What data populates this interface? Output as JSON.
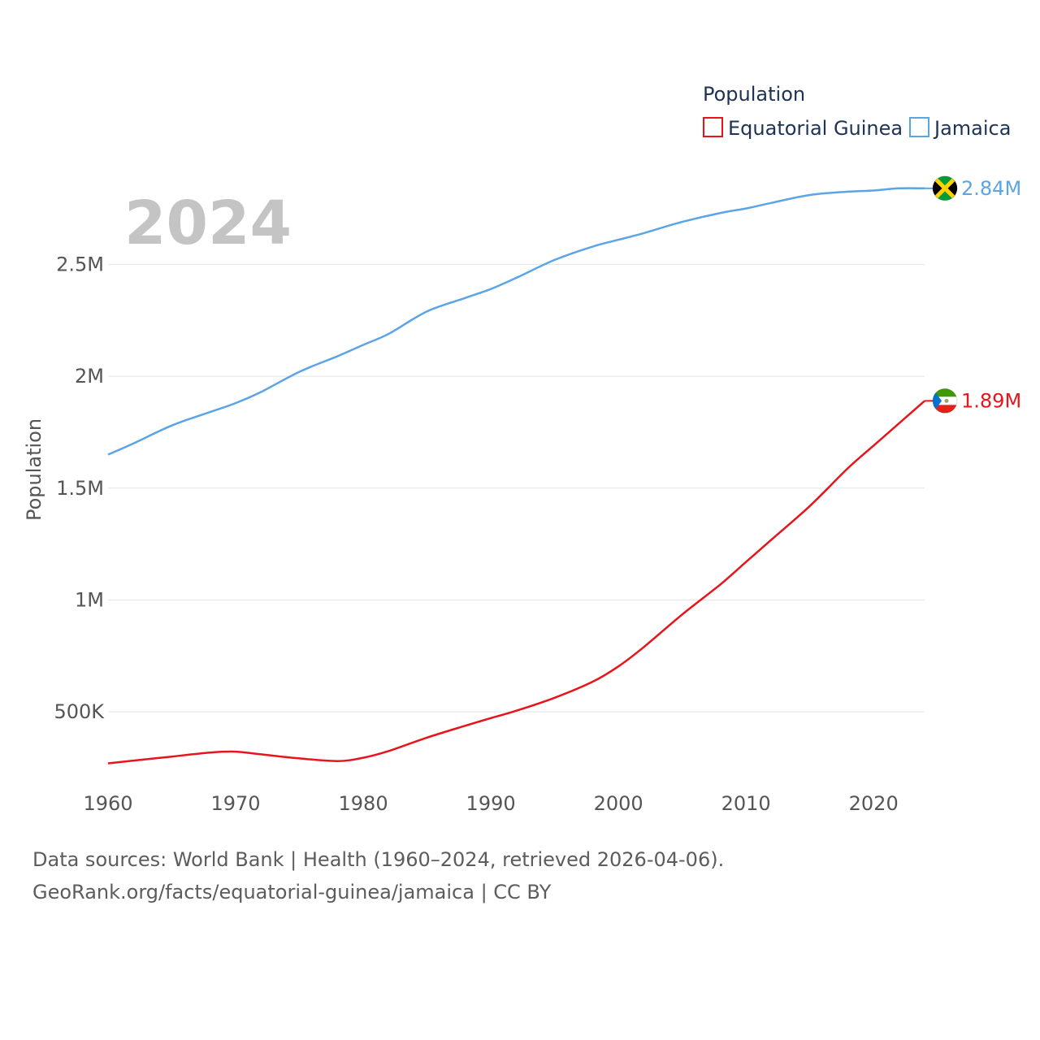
{
  "chart_data": {
    "type": "line",
    "title": "",
    "year_label": "2024",
    "xlabel": "",
    "ylabel": "Population",
    "xlim": [
      1960,
      2024
    ],
    "ylim": [
      130000,
      2930000
    ],
    "x_ticks": [
      1960,
      1970,
      1980,
      1990,
      2000,
      2010,
      2020
    ],
    "y_ticks": [
      {
        "value": 500000,
        "label": "500K"
      },
      {
        "value": 1000000,
        "label": "1M"
      },
      {
        "value": 1500000,
        "label": "1.5M"
      },
      {
        "value": 2000000,
        "label": "2M"
      },
      {
        "value": 2500000,
        "label": "2.5M"
      }
    ],
    "legend": {
      "title": "Population",
      "position": "top-right"
    },
    "x": [
      1960,
      1962,
      1965,
      1968,
      1970,
      1972,
      1975,
      1978,
      1980,
      1982,
      1985,
      1988,
      1990,
      1992,
      1995,
      1998,
      2000,
      2002,
      2005,
      2008,
      2010,
      2012,
      2015,
      2018,
      2020,
      2022,
      2024
    ],
    "series": [
      {
        "name": "Equatorial Guinea",
        "color": "#e8141b",
        "end_label": "1.89M",
        "flag": "equatorial-guinea",
        "values": [
          270000,
          282000,
          300000,
          318000,
          322000,
          310000,
          292000,
          280000,
          295000,
          325000,
          385000,
          438000,
          472000,
          505000,
          563000,
          635000,
          703000,
          790000,
          935000,
          1070000,
          1170000,
          1270000,
          1420000,
          1590000,
          1690000,
          1790000,
          1890000
        ]
      },
      {
        "name": "Jamaica",
        "color": "#5ba4e5",
        "end_label": "2.84M",
        "flag": "jamaica",
        "values": [
          1650000,
          1700000,
          1780000,
          1840000,
          1880000,
          1930000,
          2020000,
          2090000,
          2140000,
          2190000,
          2290000,
          2350000,
          2390000,
          2440000,
          2520000,
          2580000,
          2610000,
          2640000,
          2690000,
          2730000,
          2750000,
          2775000,
          2810000,
          2825000,
          2830000,
          2840000,
          2840000
        ]
      }
    ]
  },
  "source": {
    "line1": "Data sources: World Bank | Health (1960–2024, retrieved 2026-04-06).",
    "line2": "GeoRank.org/facts/equatorial-guinea/jamaica | CC BY"
  }
}
